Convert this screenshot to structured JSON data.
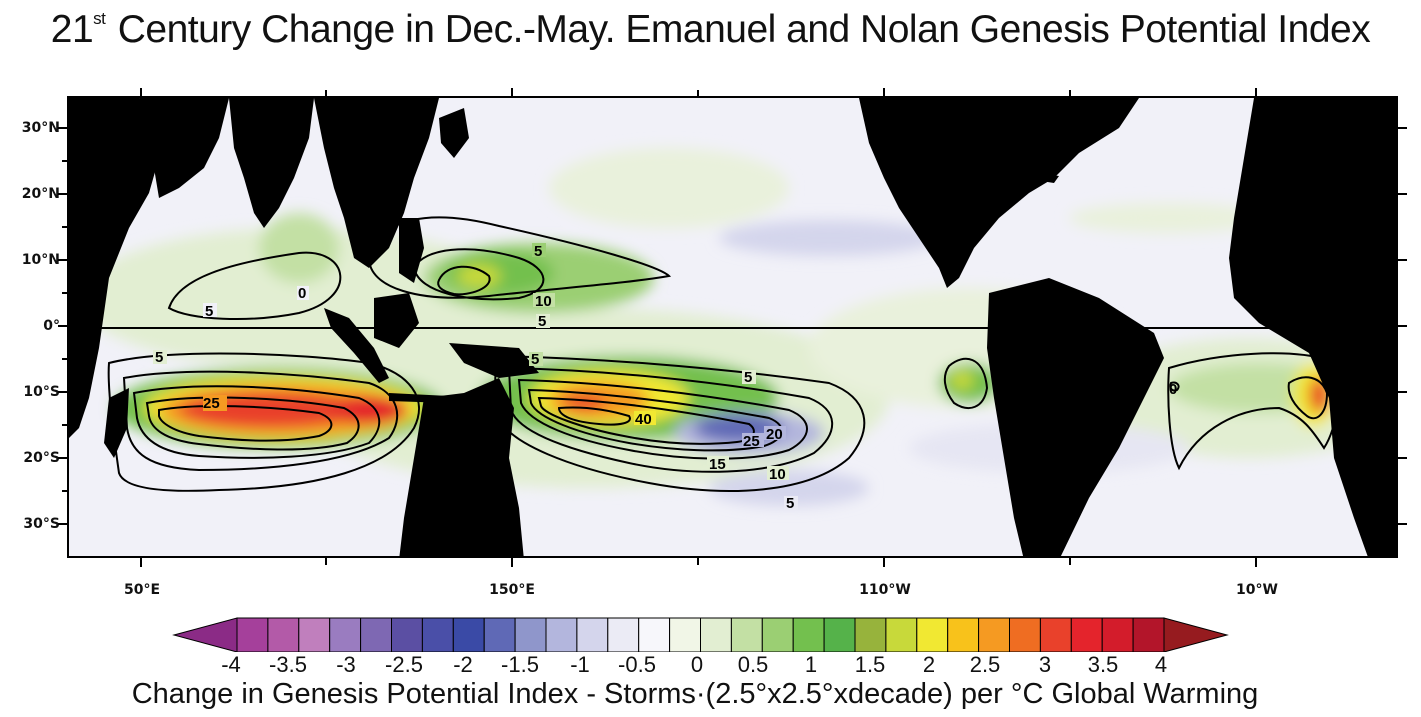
{
  "title": {
    "prefix": "21",
    "superscript": "st",
    "main": " Century Change in Dec.-May. Emanuel and Nolan Genesis Potential Index"
  },
  "map": {
    "lat_labels": [
      "30°N",
      "20°N",
      "10°N",
      "0°",
      "10°S",
      "20°S",
      "30°S"
    ],
    "lon_labels": [
      "50°E",
      "150°E",
      "110°W",
      "10°W"
    ],
    "land_color": "#000000",
    "ocean_color": "#f1f1f8",
    "contour_color": "#000000",
    "contour_labels": [
      "5",
      "0",
      "5",
      "10",
      "5",
      "5",
      "25",
      "5",
      "5",
      "40",
      "25",
      "20",
      "15",
      "10",
      "5",
      "0"
    ]
  },
  "colorbar": {
    "tick_labels": [
      "-4",
      "-3.5",
      "-3",
      "-2.5",
      "-2",
      "-1.5",
      "-1",
      "-0.5",
      "0",
      "0.5",
      "1",
      "1.5",
      "2",
      "2.5",
      "3",
      "3.5",
      "4"
    ],
    "colors": [
      "#8b2b86",
      "#a5409b",
      "#b35aa8",
      "#c07fbd",
      "#9a7cc0",
      "#7e68b3",
      "#5b4fa3",
      "#4a4fa8",
      "#3a4aa6",
      "#5f69b6",
      "#8f96cb",
      "#b3b6dd",
      "#d4d5ec",
      "#ebebf5",
      "#f7f7fb",
      "#f1f6e7",
      "#e2eed2",
      "#c3e0a4",
      "#9bcf73",
      "#73c04e",
      "#55b24a",
      "#97b33c",
      "#c8d93a",
      "#f1e832",
      "#f8c21b",
      "#f59a22",
      "#ef6d22",
      "#e9412b",
      "#e4242c",
      "#d31c2b",
      "#b3152a",
      "#961b1f"
    ],
    "caption": "Change in Genesis Potential Index - Storms·(2.5°x2.5°xdecade) per °C Global Warming"
  }
}
